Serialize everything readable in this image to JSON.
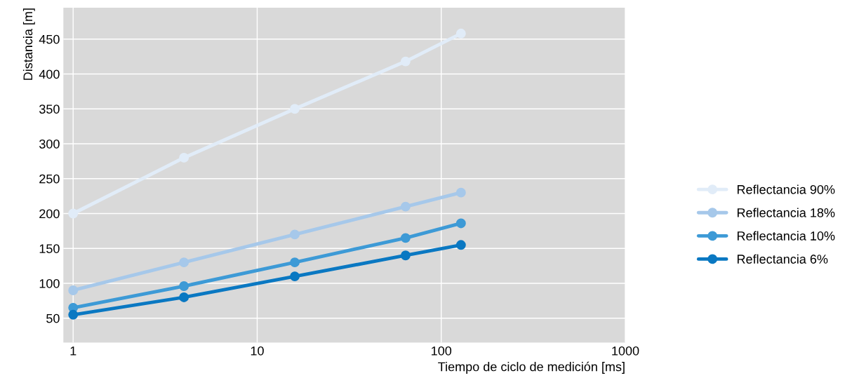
{
  "chart_data": {
    "type": "line",
    "xlabel": "Tiempo de ciclo de medición [ms]",
    "ylabel": "Distancia [m]",
    "x": [
      1,
      4,
      16,
      64,
      128
    ],
    "series": [
      {
        "name": "Reflectancia 90%",
        "color": "#e1ecf8",
        "values": [
          200,
          280,
          350,
          418,
          458
        ]
      },
      {
        "name": "Reflectancia 18%",
        "color": "#a6c8ea",
        "values": [
          90,
          130,
          170,
          210,
          230
        ]
      },
      {
        "name": "Reflectancia 10%",
        "color": "#3d9ad6",
        "values": [
          65,
          96,
          130,
          165,
          186
        ]
      },
      {
        "name": "Reflectancia 6%",
        "color": "#0a78c2",
        "values": [
          55,
          80,
          110,
          140,
          155
        ]
      }
    ],
    "log": "x",
    "xlim": [
      0.885,
      1000
    ],
    "xticks": [
      1,
      10,
      100,
      1000
    ],
    "ylim": [
      15,
      495
    ],
    "yticks": [
      50,
      100,
      150,
      200,
      250,
      300,
      350,
      400,
      450
    ],
    "grid": true,
    "legend": "right",
    "marker": "circle",
    "line_style": "solid"
  }
}
